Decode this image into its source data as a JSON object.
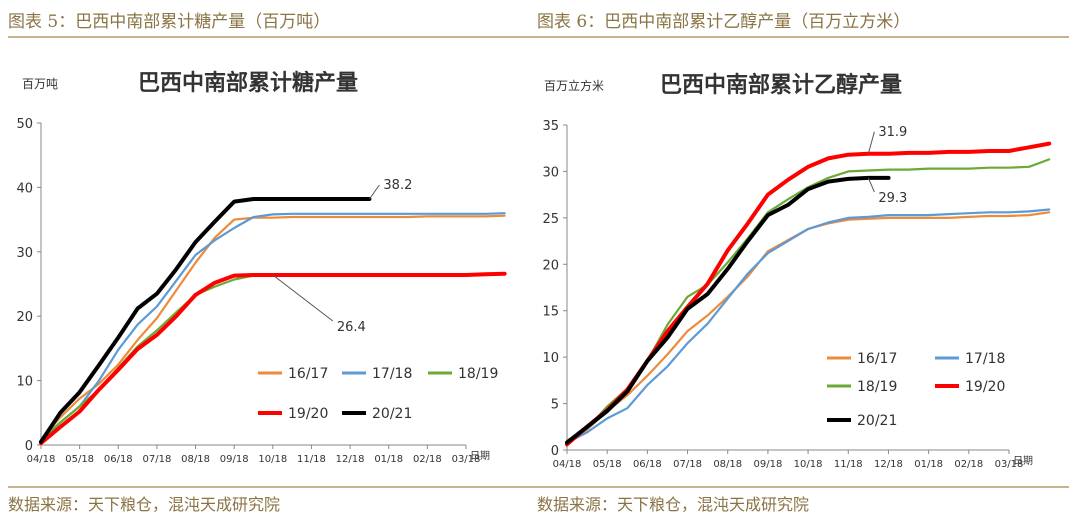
{
  "panels": [
    {
      "caption": "图表 5：巴西中南部累计糖产量（百万吨）",
      "source": "数据来源：天下粮仓，混沌天成研究院"
    },
    {
      "caption": "图表 6：巴西中南部累计乙醇产量（百万立方米）",
      "source": "数据来源：天下粮仓，混沌天成研究院"
    }
  ],
  "chart_data": [
    {
      "type": "line",
      "title": "巴西中南部累计糖产量",
      "unit_label": "百万吨",
      "xlabel": "日期",
      "ylabel": "",
      "ylim": [
        0,
        50
      ],
      "yticks": [
        0,
        10,
        20,
        30,
        40,
        50
      ],
      "categories": [
        "04/18",
        "05/18",
        "06/18",
        "07/18",
        "08/18",
        "09/18",
        "10/18",
        "11/18",
        "12/18",
        "01/18",
        "02/18",
        "03/18"
      ],
      "grid": false,
      "legend": "bottom-right",
      "series": [
        {
          "name": "16/17",
          "color": "#ed8b3c",
          "x": [
            0,
            0.5,
            1,
            1.5,
            2,
            2.5,
            3,
            3.5,
            4,
            4.5,
            5,
            5.5,
            6,
            6.5,
            7,
            7.5,
            8,
            8.5,
            9,
            9.5,
            10,
            10.5,
            11,
            11.5,
            12
          ],
          "values": [
            0.8,
            4.3,
            7.2,
            9.5,
            12.5,
            16.3,
            19.7,
            24,
            28.3,
            32.2,
            35,
            35.3,
            35.3,
            35.4,
            35.4,
            35.4,
            35.4,
            35.4,
            35.4,
            35.4,
            35.5,
            35.5,
            35.5,
            35.5,
            35.6
          ]
        },
        {
          "name": "17/18",
          "color": "#5b9bd5",
          "x": [
            0,
            0.5,
            1,
            1.5,
            2,
            2.5,
            3,
            3.5,
            4,
            4.5,
            5,
            5.5,
            6,
            6.5,
            7,
            7.5,
            8,
            8.5,
            9,
            9.5,
            10,
            10.5,
            11,
            11.5,
            12
          ],
          "values": [
            0.5,
            3.5,
            6,
            10,
            14.8,
            18.7,
            21.5,
            25.5,
            29.5,
            31.8,
            33.7,
            35.4,
            35.8,
            35.9,
            35.9,
            35.9,
            35.9,
            35.9,
            35.9,
            35.9,
            35.9,
            35.9,
            35.9,
            35.9,
            36
          ]
        },
        {
          "name": "18/19",
          "color": "#6aaa35",
          "x": [
            0,
            0.5,
            1,
            1.5,
            2,
            2.5,
            3,
            3.5,
            4,
            4.5,
            5,
            5.5,
            6,
            6.5,
            7,
            7.5,
            8,
            8.5,
            9,
            9.5,
            10,
            10.5,
            11,
            11.5,
            12
          ],
          "values": [
            0.8,
            3.5,
            6,
            8.6,
            12,
            15.3,
            17.8,
            20.6,
            23.3,
            24.6,
            25.7,
            26.3,
            26.4,
            26.4,
            26.4,
            26.4,
            26.4,
            26.4,
            26.4,
            26.4,
            26.4,
            26.4,
            26.4,
            26.4,
            26.5
          ]
        },
        {
          "name": "19/20",
          "color": "#ff0000",
          "x": [
            0,
            0.5,
            1,
            1.5,
            2,
            2.5,
            3,
            3.5,
            4,
            4.5,
            5,
            5.5,
            6,
            6.5,
            7,
            7.5,
            8,
            8.5,
            9,
            9.5,
            10,
            10.5,
            11,
            11.5,
            12
          ],
          "values": [
            0.3,
            2.8,
            5.2,
            8.6,
            11.7,
            14.9,
            17.1,
            20,
            23.3,
            25.2,
            26.3,
            26.4,
            26.4,
            26.4,
            26.4,
            26.4,
            26.4,
            26.4,
            26.4,
            26.4,
            26.4,
            26.4,
            26.4,
            26.5,
            26.6
          ]
        },
        {
          "name": "20/21",
          "color": "#000000",
          "x": [
            0,
            0.5,
            1,
            1.5,
            2,
            2.5,
            3,
            3.5,
            4,
            4.5,
            5,
            5.5,
            6,
            6.5,
            7,
            7.5,
            8,
            8.5
          ],
          "values": [
            0.5,
            5,
            8.2,
            12.4,
            16.7,
            21.2,
            23.5,
            27.3,
            31.5,
            34.7,
            37.8,
            38.2,
            38.2,
            38.2,
            38.2,
            38.2,
            38.2,
            38.2
          ]
        }
      ],
      "annotations": [
        {
          "text": "38.2",
          "series": "20/21",
          "at_x": 8.5
        },
        {
          "text": "26.4",
          "series": "19/20",
          "at_x": 6
        }
      ]
    },
    {
      "type": "line",
      "title": "巴西中南部累计乙醇产量",
      "unit_label": "百万立方米",
      "xlabel": "日期",
      "ylabel": "",
      "ylim": [
        0,
        35
      ],
      "yticks": [
        0,
        5,
        10,
        15,
        20,
        25,
        30,
        35
      ],
      "categories": [
        "04/18",
        "05/18",
        "06/18",
        "07/18",
        "08/18",
        "09/18",
        "10/18",
        "11/18",
        "12/18",
        "01/18",
        "02/18",
        "03/18"
      ],
      "grid": false,
      "legend": "bottom-right",
      "series": [
        {
          "name": "16/17",
          "color": "#ed8b3c",
          "x": [
            0,
            0.5,
            1,
            1.5,
            2,
            2.5,
            3,
            3.5,
            4,
            4.5,
            5,
            5.5,
            6,
            6.5,
            7,
            7.5,
            8,
            8.5,
            9,
            9.5,
            10,
            10.5,
            11,
            11.5,
            12
          ],
          "values": [
            0.6,
            2.2,
            4.2,
            5.9,
            8,
            10.3,
            12.8,
            14.5,
            16.5,
            18.7,
            21.4,
            22.6,
            23.8,
            24.4,
            24.8,
            24.9,
            25,
            25,
            25,
            25,
            25.1,
            25.2,
            25.2,
            25.3,
            25.6
          ]
        },
        {
          "name": "17/18",
          "color": "#5b9bd5",
          "x": [
            0,
            0.5,
            1,
            1.5,
            2,
            2.5,
            3,
            3.5,
            4,
            4.5,
            5,
            5.5,
            6,
            6.5,
            7,
            7.5,
            8,
            8.5,
            9,
            9.5,
            10,
            10.5,
            11,
            11.5,
            12
          ],
          "values": [
            0.8,
            1.9,
            3.4,
            4.5,
            7,
            9,
            11.5,
            13.6,
            16.3,
            19,
            21.2,
            22.5,
            23.8,
            24.5,
            25,
            25.1,
            25.3,
            25.3,
            25.3,
            25.4,
            25.5,
            25.6,
            25.6,
            25.7,
            25.9
          ]
        },
        {
          "name": "18/19",
          "color": "#6aaa35",
          "x": [
            0,
            0.5,
            1,
            1.5,
            2,
            2.5,
            3,
            3.5,
            4,
            4.5,
            5,
            5.5,
            6,
            6.5,
            7,
            7.5,
            8,
            8.5,
            9,
            9.5,
            10,
            10.5,
            11,
            11.5,
            12
          ],
          "values": [
            1,
            2.3,
            4.7,
            6.6,
            9.6,
            13.5,
            16.5,
            17.8,
            20.2,
            22.8,
            25.6,
            27,
            28.3,
            29.3,
            30,
            30.1,
            30.2,
            30.2,
            30.3,
            30.3,
            30.3,
            30.4,
            30.4,
            30.5,
            31.3
          ]
        },
        {
          "name": "19/20",
          "color": "#ff0000",
          "x": [
            0,
            0.5,
            1,
            1.5,
            2,
            2.5,
            3,
            3.5,
            4,
            4.5,
            5,
            5.5,
            6,
            6.5,
            7,
            7.5,
            8,
            8.5,
            9,
            9.5,
            10,
            10.5,
            11,
            11.5,
            12
          ],
          "values": [
            0.6,
            2.5,
            4.3,
            6.5,
            9.6,
            12.8,
            15.4,
            17.9,
            21.5,
            24.4,
            27.5,
            29.1,
            30.5,
            31.4,
            31.8,
            31.9,
            31.9,
            32,
            32,
            32.1,
            32.1,
            32.2,
            32.2,
            32.6,
            33
          ]
        },
        {
          "name": "20/21",
          "color": "#000000",
          "x": [
            0,
            0.5,
            1,
            1.5,
            2,
            2.5,
            3,
            3.5,
            4,
            4.5,
            5,
            5.5,
            6,
            6.5,
            7,
            7.5,
            8
          ],
          "values": [
            0.8,
            2.5,
            4.2,
            6.3,
            9.6,
            12.1,
            15.2,
            16.8,
            19.5,
            22.5,
            25.3,
            26.4,
            28.1,
            28.9,
            29.2,
            29.3,
            29.3
          ]
        }
      ],
      "annotations": [
        {
          "text": "31.9",
          "series": "19/20",
          "at_x": 7.5
        },
        {
          "text": "29.3",
          "series": "20/21",
          "at_x": 7.5
        }
      ]
    }
  ]
}
